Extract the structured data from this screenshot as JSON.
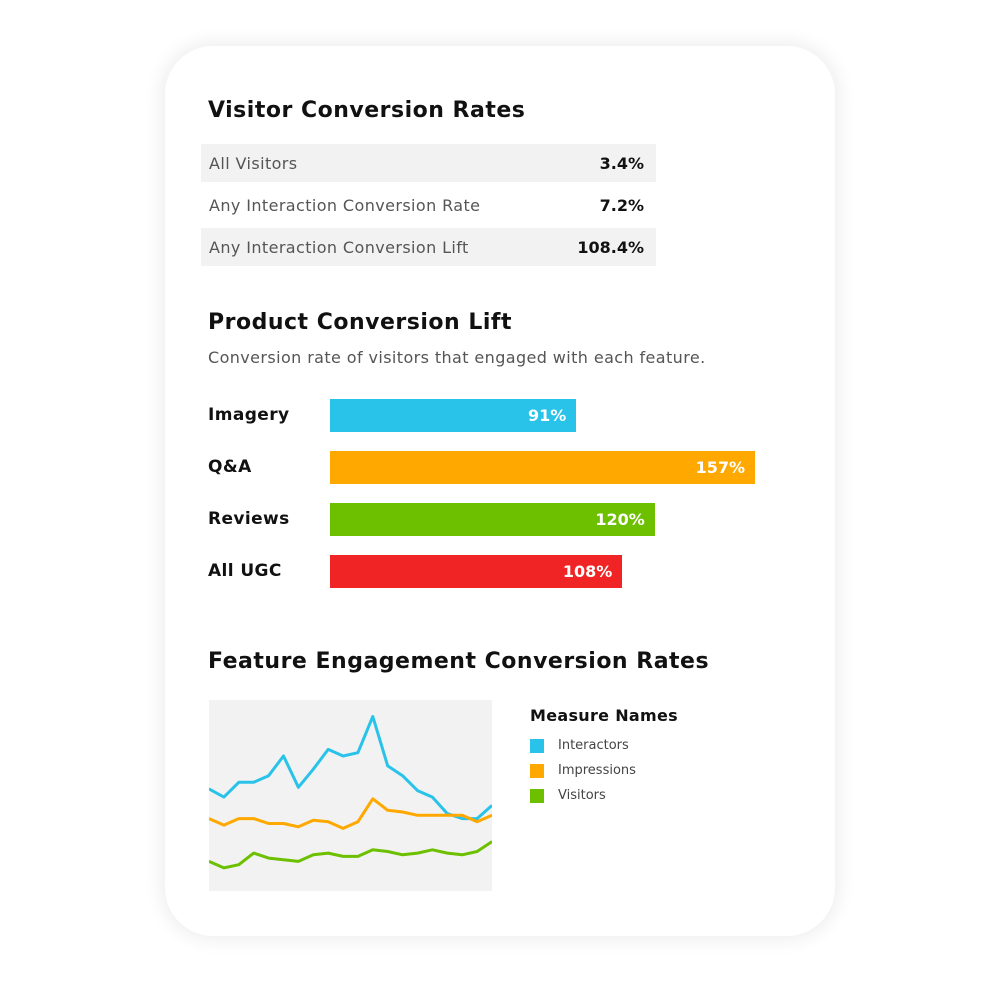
{
  "colors": {
    "interactors": "#29c3ea",
    "impressions": "#ffa800",
    "visitors": "#6cc000",
    "all_ugc": "#f02424",
    "panel_bg": "#f2f2f2"
  },
  "visitor_rates": {
    "title": "Visitor Conversion Rates",
    "rows": [
      {
        "label": "All Visitors",
        "value": "3.4%"
      },
      {
        "label": "Any Interaction Conversion Rate",
        "value": "7.2%"
      },
      {
        "label": "Any Interaction Conversion Lift",
        "value": "108.4%"
      }
    ]
  },
  "product_lift": {
    "title": "Product Conversion Lift",
    "subtitle": "Conversion rate of visitors that engaged with each feature."
  },
  "engagement": {
    "title": "Feature Engagement Conversion Rates"
  },
  "chart_data": [
    {
      "type": "bar",
      "orientation": "horizontal",
      "categories": [
        "Imagery",
        "Q&A",
        "Reviews",
        "All UGC"
      ],
      "values": [
        91,
        157,
        120,
        108
      ],
      "value_labels": [
        "91%",
        "157%",
        "120%",
        "108%"
      ],
      "colors": [
        "#29c3ea",
        "#ffa800",
        "#6cc000",
        "#f02424"
      ],
      "xlim": [
        0,
        157
      ]
    },
    {
      "type": "line",
      "x": [
        1,
        2,
        3,
        4,
        5,
        6,
        7,
        8,
        9,
        10,
        11,
        12,
        13,
        14,
        15,
        16,
        17,
        18,
        19,
        20
      ],
      "series": [
        {
          "name": "Interactors",
          "color": "#29c3ea",
          "values": [
            6.2,
            5.7,
            6.6,
            6.6,
            7.0,
            8.2,
            6.3,
            7.4,
            8.6,
            8.2,
            8.4,
            10.6,
            7.6,
            7.0,
            6.1,
            5.7,
            4.7,
            4.4,
            4.4,
            5.2
          ]
        },
        {
          "name": "Impressions",
          "color": "#ffa800",
          "values": [
            4.4,
            4.0,
            4.4,
            4.4,
            4.1,
            4.1,
            3.9,
            4.3,
            4.2,
            3.8,
            4.2,
            5.6,
            4.9,
            4.8,
            4.6,
            4.6,
            4.6,
            4.6,
            4.2,
            4.6
          ]
        },
        {
          "name": "Visitors",
          "color": "#6cc000",
          "values": [
            1.8,
            1.4,
            1.6,
            2.3,
            2.0,
            1.9,
            1.8,
            2.2,
            2.3,
            2.1,
            2.1,
            2.5,
            2.4,
            2.2,
            2.3,
            2.5,
            2.3,
            2.2,
            2.4,
            3.0
          ]
        }
      ],
      "ylim": [
        0,
        11.6
      ],
      "legend_title": "Measure Names",
      "legend_position": "right",
      "grid": false
    }
  ]
}
